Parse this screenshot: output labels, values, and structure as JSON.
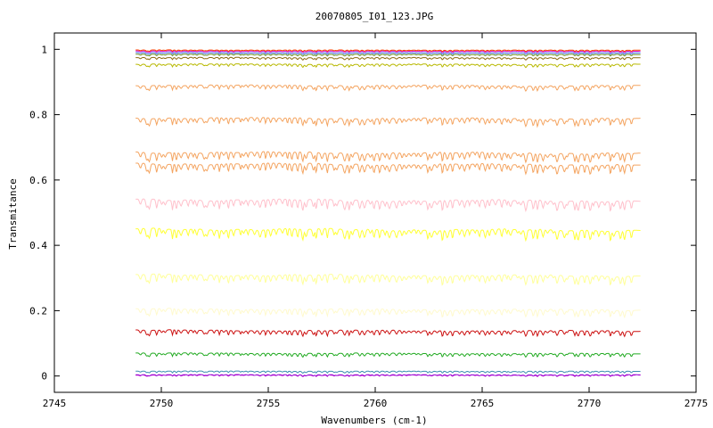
{
  "chart_data": {
    "type": "line",
    "title": "20070805_I01_123.JPG",
    "xlabel": "Wavenumbers (cm-1)",
    "ylabel": "Transmitance",
    "xlim": [
      2745,
      2775
    ],
    "ylim": [
      -0.05,
      1.05
    ],
    "x_range": [
      2748.8,
      2772.4
    ],
    "xticks": [
      "2745",
      "2750",
      "2755",
      "2760",
      "2765",
      "2770",
      "2775"
    ],
    "yticks": [
      "0",
      "0.2",
      "0.4",
      "0.6",
      "0.8",
      "1"
    ],
    "grid": false,
    "legend": "none",
    "series": [
      {
        "baseline": 0.003,
        "color": "#cc00cc",
        "dash": "6,3"
      },
      {
        "baseline": 0.004,
        "color": "#9400d3"
      },
      {
        "baseline": 0.015,
        "color": "#3a8fb0"
      },
      {
        "baseline": 0.07,
        "color": "#22aa22"
      },
      {
        "baseline": 0.14,
        "color": "#cc1111"
      },
      {
        "baseline": 0.205,
        "color": "#fffacd"
      },
      {
        "baseline": 0.31,
        "color": "#ffff99"
      },
      {
        "baseline": 0.45,
        "color": "#ffff33"
      },
      {
        "baseline": 0.54,
        "color": "#ffc0cb"
      },
      {
        "baseline": 0.65,
        "color": "#f4a460"
      },
      {
        "baseline": 0.685,
        "color": "#f4a460"
      },
      {
        "baseline": 0.79,
        "color": "#f4a460"
      },
      {
        "baseline": 0.89,
        "color": "#f4a460"
      },
      {
        "baseline": 0.955,
        "color": "#b8b800"
      },
      {
        "baseline": 0.975,
        "color": "#8b6914"
      },
      {
        "baseline": 0.985,
        "color": "#6b8e23"
      },
      {
        "baseline": 0.99,
        "color": "#4169e1"
      },
      {
        "baseline": 0.995,
        "color": "#cc00cc"
      },
      {
        "baseline": 0.998,
        "color": "#ff4500"
      }
    ]
  }
}
